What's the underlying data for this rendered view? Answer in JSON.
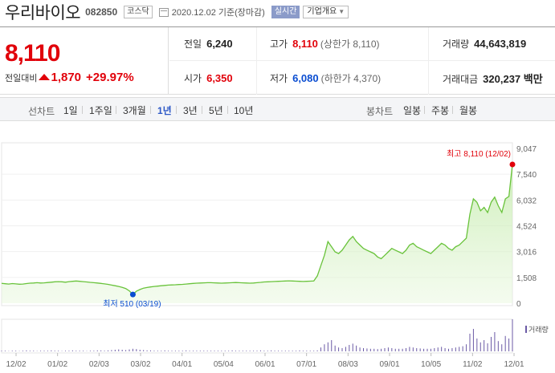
{
  "header": {
    "stock_name": "우리바이오",
    "stock_code": "082850",
    "market_badge": "코스닥",
    "date_text": "2020.12.02 기준(장마감)",
    "realtime_label": "실시간",
    "company_label": "기업개요"
  },
  "quote": {
    "price": "8,110",
    "change_label": "전일대비",
    "change_value": "1,870",
    "change_pct": "+29.97%",
    "prev_close_label": "전일",
    "prev_close": "6,240",
    "high_label": "고가",
    "high": "8,110",
    "upper_limit": "(상한가 8,110)",
    "volume_label": "거래량",
    "volume": "44,643,819",
    "open_label": "시가",
    "open": "6,350",
    "low_label": "저가",
    "low": "6,080",
    "lower_limit": "(하한가 4,370)",
    "amount_label": "거래대금",
    "amount": "320,237 백만"
  },
  "tabs": {
    "line_label": "선차트",
    "periods": [
      "1일",
      "1주일",
      "3개월",
      "1년",
      "3년",
      "5년",
      "10년"
    ],
    "active_period": "1년",
    "candle_label": "봉차트",
    "candles": [
      "일봉",
      "주봉",
      "월봉"
    ]
  },
  "colors": {
    "up": "#e1010a",
    "down": "#0a4dd1",
    "line": "#69c33b",
    "volume": "#6b5aa6"
  },
  "chart_data": {
    "type": "area",
    "y_ticks": [
      "9,047",
      "7,540",
      "6,032",
      "4,524",
      "3,016",
      "1,508",
      "0"
    ],
    "ylim": [
      0,
      9047
    ],
    "x_ticks": [
      "12/02",
      "01/02",
      "02/03",
      "03/02",
      "04/01",
      "05/04",
      "06/01",
      "07/01",
      "08/03",
      "09/01",
      "10/05",
      "11/02",
      "12/01"
    ],
    "max_label": "최고 8,110 (12/02)",
    "min_label": "최저 510 (03/19)",
    "volume_legend": "거래량",
    "series": [
      {
        "values": [
          1160,
          1140,
          1120,
          1150,
          1130,
          1110,
          1120,
          1150,
          1170,
          1180,
          1200,
          1180,
          1190,
          1210,
          1230,
          1250,
          1260,
          1250,
          1230,
          1260,
          1280,
          1300,
          1280,
          1260,
          1240,
          1220,
          1200,
          1180,
          1160,
          1130,
          1100,
          1060,
          1020,
          980,
          930,
          860,
          720,
          510,
          700,
          800,
          880,
          920,
          950,
          980,
          1000,
          1020,
          1040,
          1060,
          1070,
          1080,
          1090,
          1100,
          1120,
          1140,
          1160,
          1170,
          1180,
          1190,
          1200,
          1200,
          1190,
          1180,
          1170,
          1180,
          1190,
          1200,
          1210,
          1200,
          1190,
          1180,
          1170,
          1180,
          1200,
          1220,
          1240,
          1250,
          1260,
          1270,
          1280,
          1290,
          1300,
          1310,
          1300,
          1290,
          1280,
          1270,
          1280,
          1290,
          1300,
          1600,
          2200,
          2800,
          3600,
          3300,
          3000,
          2900,
          3100,
          3400,
          3700,
          3900,
          3600,
          3400,
          3200,
          3100,
          3000,
          2900,
          2700,
          2600,
          2800,
          3000,
          3200,
          3100,
          3000,
          2900,
          3100,
          3400,
          3500,
          3300,
          3200,
          3100,
          3000,
          2900,
          3100,
          3300,
          3500,
          3400,
          3200,
          3100,
          3300,
          3400,
          3600,
          3800,
          5200,
          6100,
          5900,
          5400,
          5600,
          5300,
          5900,
          6200,
          5700,
          5300,
          6100,
          6240,
          8110
        ]
      }
    ],
    "volume": [
      2,
      2,
      1,
      2,
      2,
      1,
      2,
      3,
      2,
      2,
      1,
      2,
      2,
      2,
      3,
      2,
      2,
      1,
      2,
      2,
      3,
      2,
      2,
      2,
      1,
      2,
      2,
      3,
      3,
      2,
      3,
      4,
      5,
      6,
      5,
      4,
      6,
      8,
      7,
      5,
      4,
      3,
      3,
      2,
      2,
      2,
      3,
      2,
      2,
      2,
      2,
      2,
      3,
      2,
      2,
      2,
      2,
      2,
      2,
      2,
      2,
      2,
      2,
      2,
      2,
      3,
      2,
      2,
      2,
      2,
      2,
      2,
      2,
      3,
      2,
      2,
      3,
      2,
      2,
      2,
      2,
      2,
      2,
      2,
      3,
      2,
      2,
      2,
      2,
      3,
      12,
      22,
      28,
      35,
      18,
      12,
      10,
      14,
      20,
      24,
      18,
      12,
      10,
      9,
      8,
      8,
      7,
      8,
      10,
      12,
      10,
      8,
      8,
      8,
      10,
      14,
      12,
      10,
      9,
      8,
      8,
      8,
      10,
      12,
      14,
      10,
      8,
      10,
      12,
      14,
      16,
      22,
      55,
      70,
      40,
      28,
      35,
      25,
      45,
      60,
      32,
      22,
      48,
      40,
      100
    ]
  }
}
